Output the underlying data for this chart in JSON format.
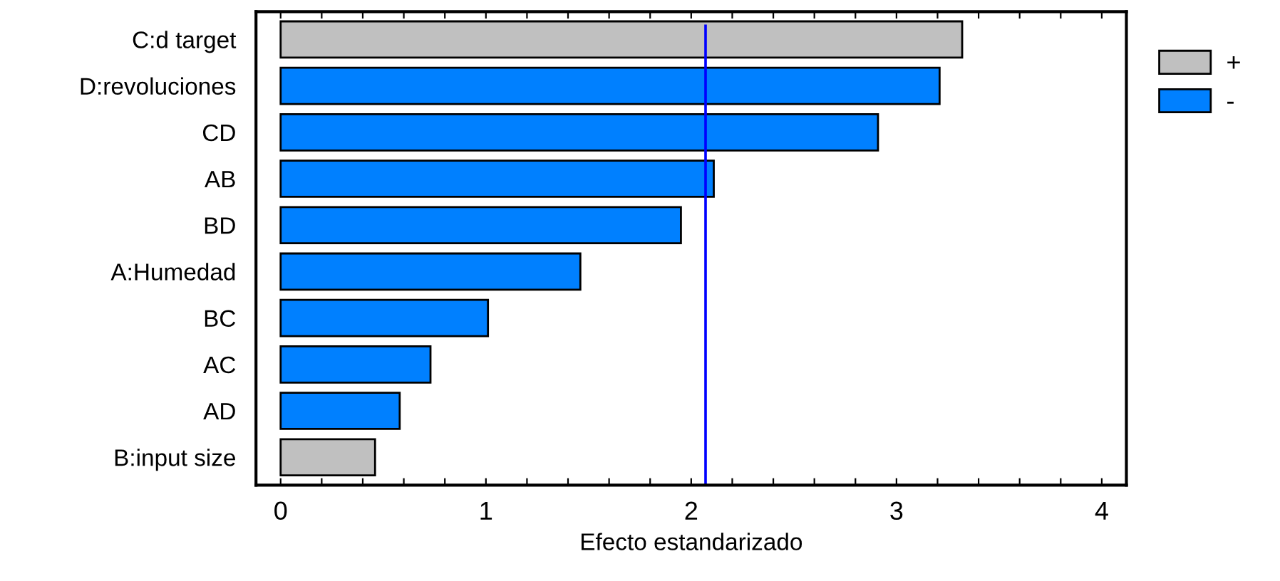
{
  "chart_data": {
    "type": "bar",
    "orientation": "horizontal",
    "xlabel": "Efecto estandarizado",
    "categories": [
      "C:d target",
      "D:revoluciones",
      "CD",
      "AB",
      "BD",
      "A:Humedad",
      "BC",
      "AC",
      "AD",
      "B:input size"
    ],
    "series": [
      {
        "name": "+",
        "color": "#c0c0c0",
        "values": [
          3.32,
          null,
          null,
          null,
          null,
          null,
          null,
          null,
          null,
          0.46
        ]
      },
      {
        "name": "-",
        "color": "#0080ff",
        "values": [
          null,
          3.21,
          2.91,
          2.11,
          1.95,
          1.46,
          1.01,
          0.73,
          0.58,
          null
        ]
      }
    ],
    "xlim": [
      -0.12,
      4.12
    ],
    "xticks": [
      0,
      {
        "value": 0.2,
        "label": null
      },
      {
        "value": 0.4,
        "label": null
      },
      {
        "value": 0.6,
        "label": null
      },
      {
        "value": 0.8,
        "label": null
      },
      1,
      {
        "value": 1.2,
        "label": null
      },
      {
        "value": 1.4,
        "label": null
      },
      {
        "value": 1.6,
        "label": null
      },
      {
        "value": 1.8,
        "label": null
      },
      2,
      {
        "value": 2.2,
        "label": null
      },
      {
        "value": 2.4,
        "label": null
      },
      {
        "value": 2.6,
        "label": null
      },
      {
        "value": 2.8,
        "label": null
      },
      3,
      {
        "value": 3.2,
        "label": null
      },
      {
        "value": 3.4,
        "label": null
      },
      {
        "value": 3.6,
        "label": null
      },
      {
        "value": 3.8,
        "label": null
      },
      4
    ],
    "ref_lines": [
      {
        "axis": "x",
        "value": 2.07,
        "color": "#0000ff"
      }
    ],
    "grid": false,
    "legend": "top right"
  }
}
